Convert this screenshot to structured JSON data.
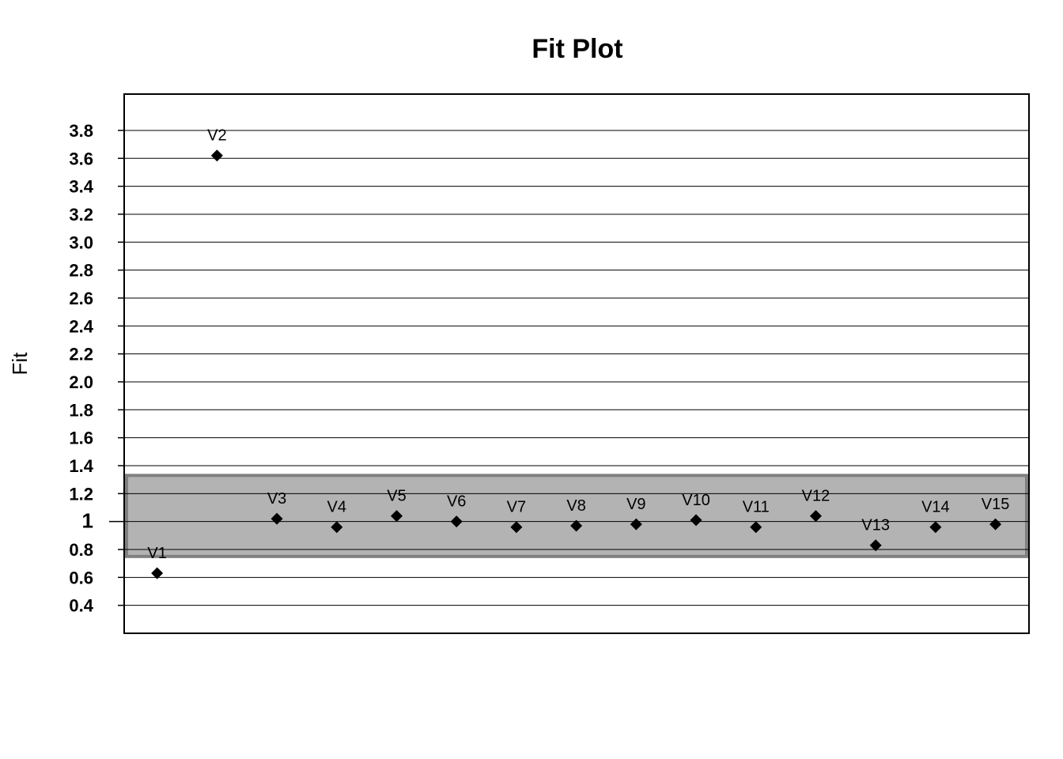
{
  "chart_data": {
    "type": "scatter",
    "title": "Fit Plot",
    "xlabel": "",
    "ylabel": "Fit",
    "ylim": [
      0.2,
      4.06
    ],
    "grid": true,
    "y_ticks": [
      {
        "value": 3.8,
        "label": "3.8"
      },
      {
        "value": 3.6,
        "label": "3.6"
      },
      {
        "value": 3.4,
        "label": "3.4"
      },
      {
        "value": 3.2,
        "label": "3.2"
      },
      {
        "value": 3.0,
        "label": "3.0"
      },
      {
        "value": 2.8,
        "label": "2.8"
      },
      {
        "value": 2.6,
        "label": "2.6"
      },
      {
        "value": 2.4,
        "label": "2.4"
      },
      {
        "value": 2.2,
        "label": "2.2"
      },
      {
        "value": 2.0,
        "label": "2.0"
      },
      {
        "value": 1.8,
        "label": "1.8"
      },
      {
        "value": 1.6,
        "label": "1.6"
      },
      {
        "value": 1.4,
        "label": "1.4"
      },
      {
        "value": 1.2,
        "label": "1.2"
      },
      {
        "value": 1.0,
        "label": "1"
      },
      {
        "value": 0.8,
        "label": "0.8"
      },
      {
        "value": 0.6,
        "label": "0.6"
      },
      {
        "value": 0.4,
        "label": "0.4"
      }
    ],
    "band": {
      "low": 0.75,
      "high": 1.33,
      "color": "#b3b3b3",
      "border_color": "#808080"
    },
    "marker": "diamond",
    "marker_color": "#000000",
    "points": [
      {
        "label": "V1",
        "y": 0.63
      },
      {
        "label": "V2",
        "y": 3.62
      },
      {
        "label": "V3",
        "y": 1.02
      },
      {
        "label": "V4",
        "y": 0.96
      },
      {
        "label": "V5",
        "y": 1.04
      },
      {
        "label": "V6",
        "y": 1.0
      },
      {
        "label": "V7",
        "y": 0.96
      },
      {
        "label": "V8",
        "y": 0.97
      },
      {
        "label": "V9",
        "y": 0.98
      },
      {
        "label": "V10",
        "y": 1.01
      },
      {
        "label": "V11",
        "y": 0.96
      },
      {
        "label": "V12",
        "y": 1.04
      },
      {
        "label": "V13",
        "y": 0.83
      },
      {
        "label": "V14",
        "y": 0.96
      },
      {
        "label": "V15",
        "y": 0.98
      }
    ]
  }
}
